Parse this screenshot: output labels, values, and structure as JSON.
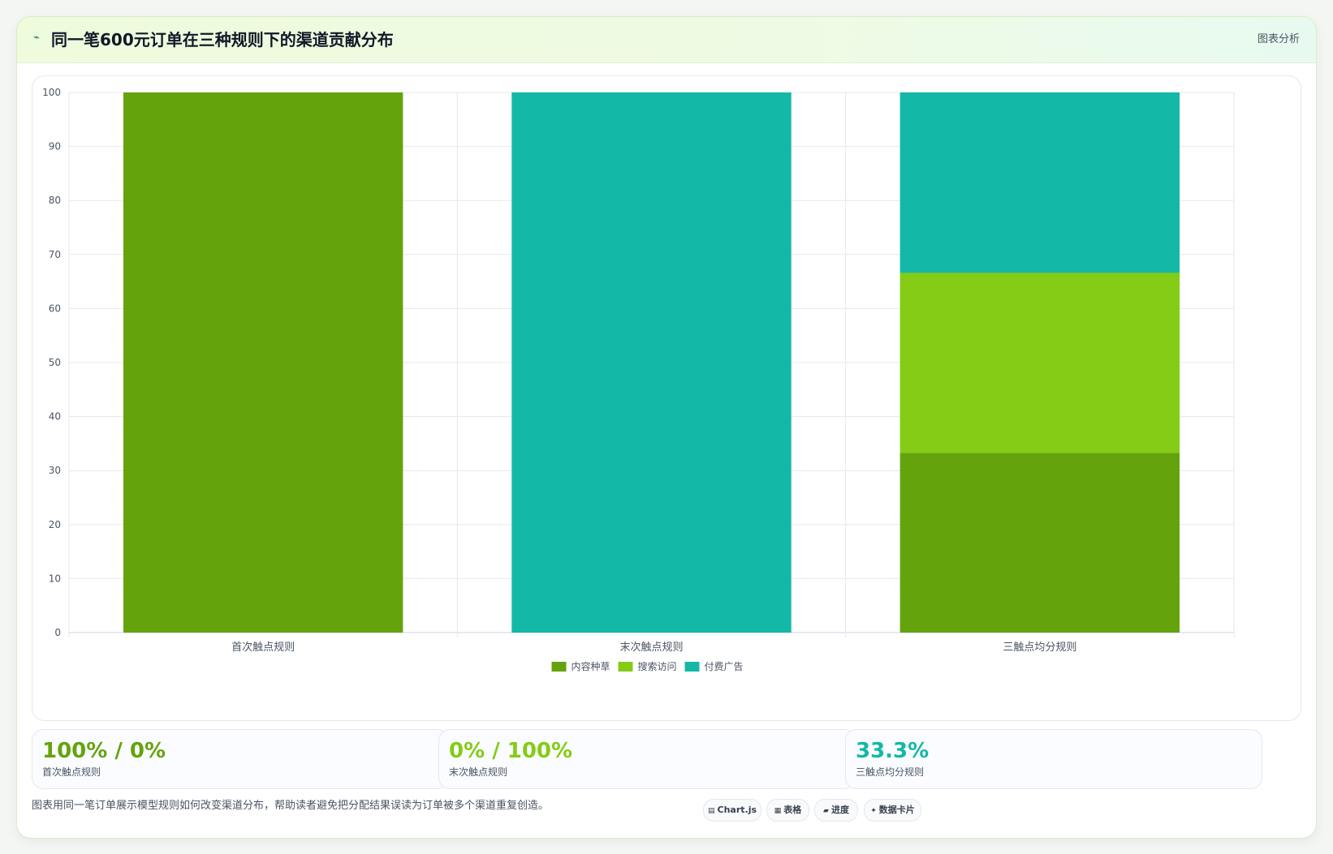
{
  "header": {
    "title": "同一笔600元订单在三种规则下的渠道贡献分布",
    "tag": "图表分析",
    "icon": "trend-icon"
  },
  "chart_data": {
    "type": "bar",
    "stacked": true,
    "categories": [
      "首次触点规则",
      "末次触点规则",
      "三触点均分规则"
    ],
    "series": [
      {
        "name": "内容种草",
        "color": "#65a30d",
        "values": [
          100,
          0,
          33.3
        ]
      },
      {
        "name": "搜索访问",
        "color": "#84cc16",
        "values": [
          0,
          0,
          33.3
        ]
      },
      {
        "name": "付费广告",
        "color": "#14b8a6",
        "values": [
          0,
          100,
          33.4
        ]
      }
    ],
    "ylim": [
      0,
      100
    ],
    "yticks": [
      0,
      10,
      20,
      30,
      40,
      50,
      60,
      70,
      80,
      90,
      100
    ],
    "grid": true,
    "legend": "bottom"
  },
  "stats": [
    {
      "value": "100% / 0%",
      "label": "首次触点规则",
      "color": "#65a30d"
    },
    {
      "value": "0% / 100%",
      "label": "末次触点规则",
      "color": "#84cc16"
    },
    {
      "value": "33.3%",
      "label": "三触点均分规则",
      "color": "#14b8a6"
    }
  ],
  "footer": {
    "caption": "图表用同一笔订单展示模型规则如何改变渠道分布，帮助读者避免把分配结果误读为订单被多个渠道重复创造。",
    "chips": [
      {
        "icon": "▤",
        "label": "Chart.js"
      },
      {
        "icon": "▦",
        "label": "表格"
      },
      {
        "icon": "▰",
        "label": "进度"
      },
      {
        "icon": "✦",
        "label": "数据卡片"
      }
    ]
  }
}
